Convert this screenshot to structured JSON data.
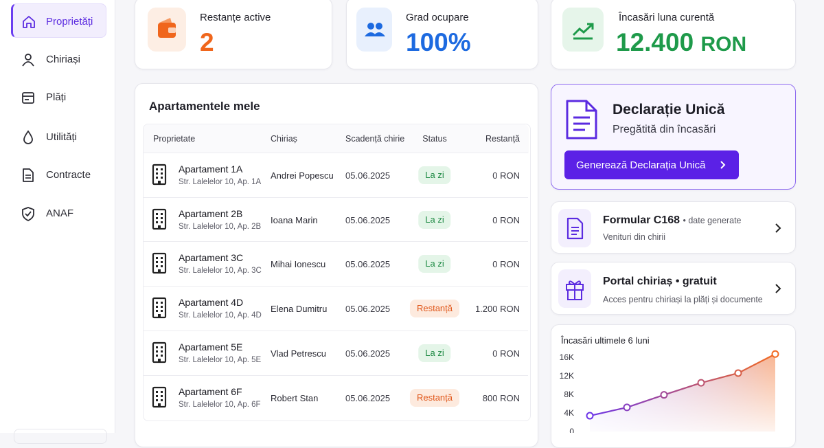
{
  "sidebar": {
    "items": [
      {
        "label": "Proprietăți",
        "active": true
      },
      {
        "label": "Chiriași",
        "active": false
      },
      {
        "label": "Plăți",
        "active": false
      },
      {
        "label": "Utilități",
        "active": false
      },
      {
        "label": "Contracte",
        "active": false
      },
      {
        "label": "ANAF",
        "active": false
      }
    ]
  },
  "stats": [
    {
      "label": "Restanțe active",
      "value": "2",
      "color": "#f0661c",
      "icon_bg": "#fdeee4"
    },
    {
      "label": "Grad ocupare",
      "value": "100%",
      "color": "#1d6ae0",
      "icon_bg": "#e8f0fd"
    },
    {
      "label": "Încasări luna curentă",
      "value": "12.400",
      "unit": "RON",
      "color": "#1e9a4a",
      "icon_bg": "#e6f5ea"
    }
  ],
  "table": {
    "title": "Apartamentele mele",
    "columns": [
      "Proprietate",
      "Chiriaș",
      "Scadență chirie",
      "Status",
      "Restanță"
    ],
    "rows": [
      {
        "name": "Apartament 1A",
        "address": "Str. Lalelelor 10, Ap. 1A",
        "tenant": "Andrei Popescu",
        "due": "05.06.2025",
        "status": "La zi",
        "status_color": "#1f8a44",
        "status_bg": "#e4f5e8",
        "arrears": "0 RON"
      },
      {
        "name": "Apartament 2B",
        "address": "Str. Lalelelor 10, Ap. 2B",
        "tenant": "Ioana Marin",
        "due": "05.06.2025",
        "status": "La zi",
        "status_color": "#1f8a44",
        "status_bg": "#e4f5e8",
        "arrears": "0 RON"
      },
      {
        "name": "Apartament 3C",
        "address": "Str. Lalelelor 10, Ap. 3C",
        "tenant": "Mihai Ionescu",
        "due": "05.06.2025",
        "status": "La zi",
        "status_color": "#1f8a44",
        "status_bg": "#e4f5e8",
        "arrears": "0 RON"
      },
      {
        "name": "Apartament 4D",
        "address": "Str. Lalelelor 10, Ap. 4D",
        "tenant": "Elena Dumitru",
        "due": "05.06.2025",
        "status": "Restanță",
        "status_color": "#e0571a",
        "status_bg": "#fdeade",
        "arrears": "1.200 RON"
      },
      {
        "name": "Apartament 5E",
        "address": "Str. Lalelelor 10, Ap. 5E",
        "tenant": "Vlad Petrescu",
        "due": "05.06.2025",
        "status": "La zi",
        "status_color": "#1f8a44",
        "status_bg": "#e4f5e8",
        "arrears": "0 RON"
      },
      {
        "name": "Apartament 6F",
        "address": "Str. Lalelelor 10, Ap. 6F",
        "tenant": "Robert Stan",
        "due": "05.06.2025",
        "status": "Restanță",
        "status_color": "#e0571a",
        "status_bg": "#fdeade",
        "arrears": "800 RON"
      }
    ]
  },
  "declaration": {
    "title": "Declarație Unică",
    "subtitle": "Pregătită din încasări",
    "button": "Generează Declarația Unică"
  },
  "cards": [
    {
      "title": "Formular C168",
      "tag": "• date generate",
      "subtitle": "Venituri din chirii"
    },
    {
      "title": "Portal chiriaș • gratuit",
      "subtitle": "Acces pentru chiriași la plăți și documente"
    }
  ],
  "chart_data": {
    "type": "area",
    "title": "Încasări ultimele 6 luni",
    "values": [
      3400,
      5200,
      7900,
      10500,
      12600,
      16700
    ],
    "ylim": [
      0,
      17000
    ],
    "yticks": [
      0,
      {
        "value": 4000,
        "label": "4K"
      },
      {
        "value": 8000,
        "label": "8K"
      },
      {
        "value": 12000,
        "label": "12K"
      },
      {
        "value": 16000,
        "label": "16K"
      }
    ],
    "colors": [
      "#6d35e8",
      "#f26a21"
    ]
  }
}
